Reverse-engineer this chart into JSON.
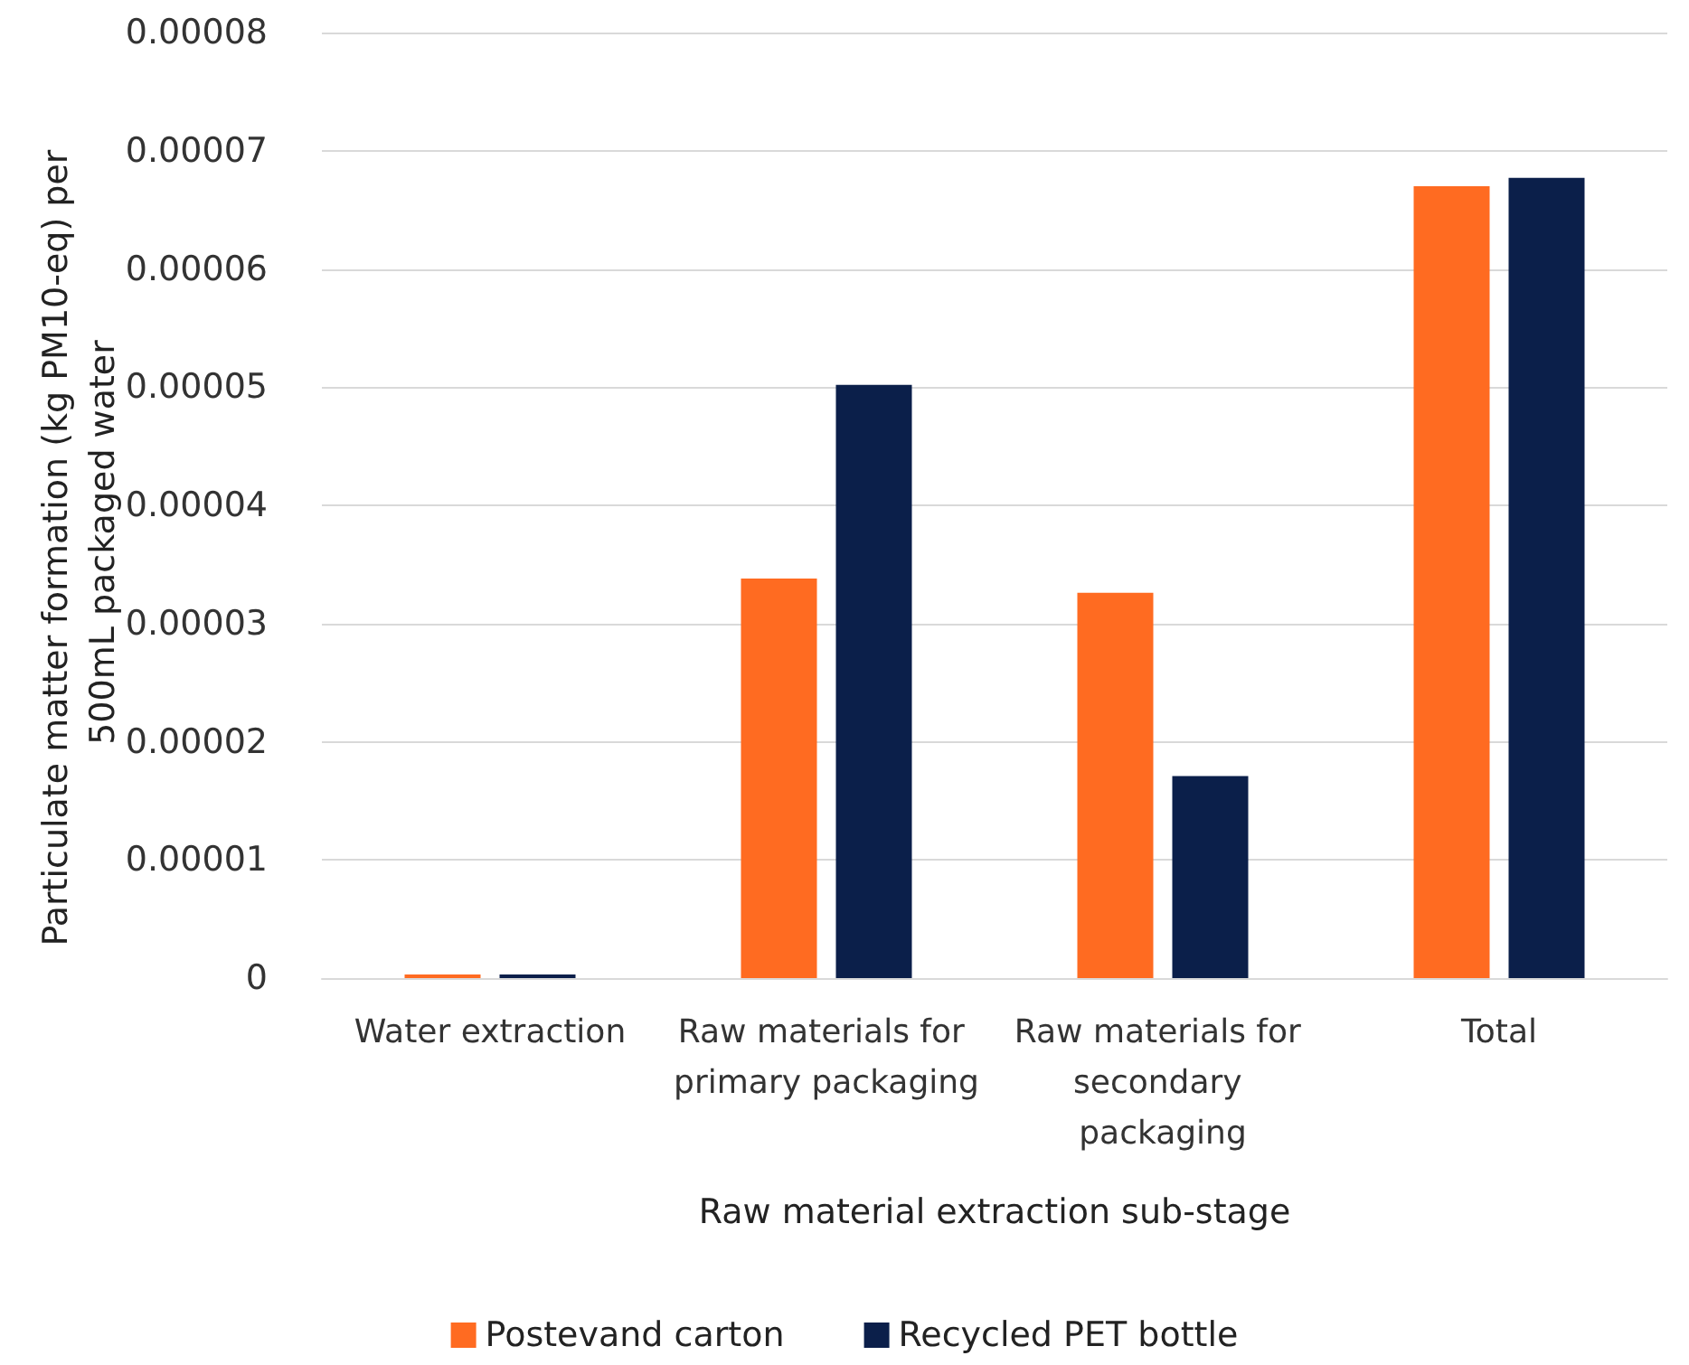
{
  "chart_data": {
    "type": "bar",
    "xlabel": "Raw material extraction sub-stage",
    "ylabel": "Particulate matter formation (kg PM10-eq) per 500mL packaged water",
    "categories": [
      "Water extraction",
      "Raw materials for primary packaging",
      "Raw materials for secondary packaging",
      "Total"
    ],
    "series": [
      {
        "name": "Postevand carton",
        "color": "#ff6b21",
        "values": [
          3e-07,
          3.38e-05,
          3.26e-05,
          6.7e-05
        ]
      },
      {
        "name": "Recycled PET bottle",
        "color": "#0b1f4a",
        "values": [
          3e-07,
          5.02e-05,
          1.71e-05,
          6.77e-05
        ]
      }
    ],
    "ylim": [
      0,
      8e-05
    ],
    "yticks": [
      0,
      {
        "value": 1e-05,
        "label": "0.00001"
      },
      {
        "value": 2e-05,
        "label": "0.00002"
      },
      {
        "value": 3e-05,
        "label": "0.00003"
      },
      {
        "value": 4e-05,
        "label": "0.00004"
      },
      {
        "value": 5e-05,
        "label": "0.00005"
      },
      {
        "value": 6e-05,
        "label": "0.00006"
      },
      {
        "value": 7e-05,
        "label": "0.00007"
      },
      {
        "value": 8e-05,
        "label": "0.00008"
      }
    ],
    "grid": "y",
    "legend": "bottom"
  }
}
